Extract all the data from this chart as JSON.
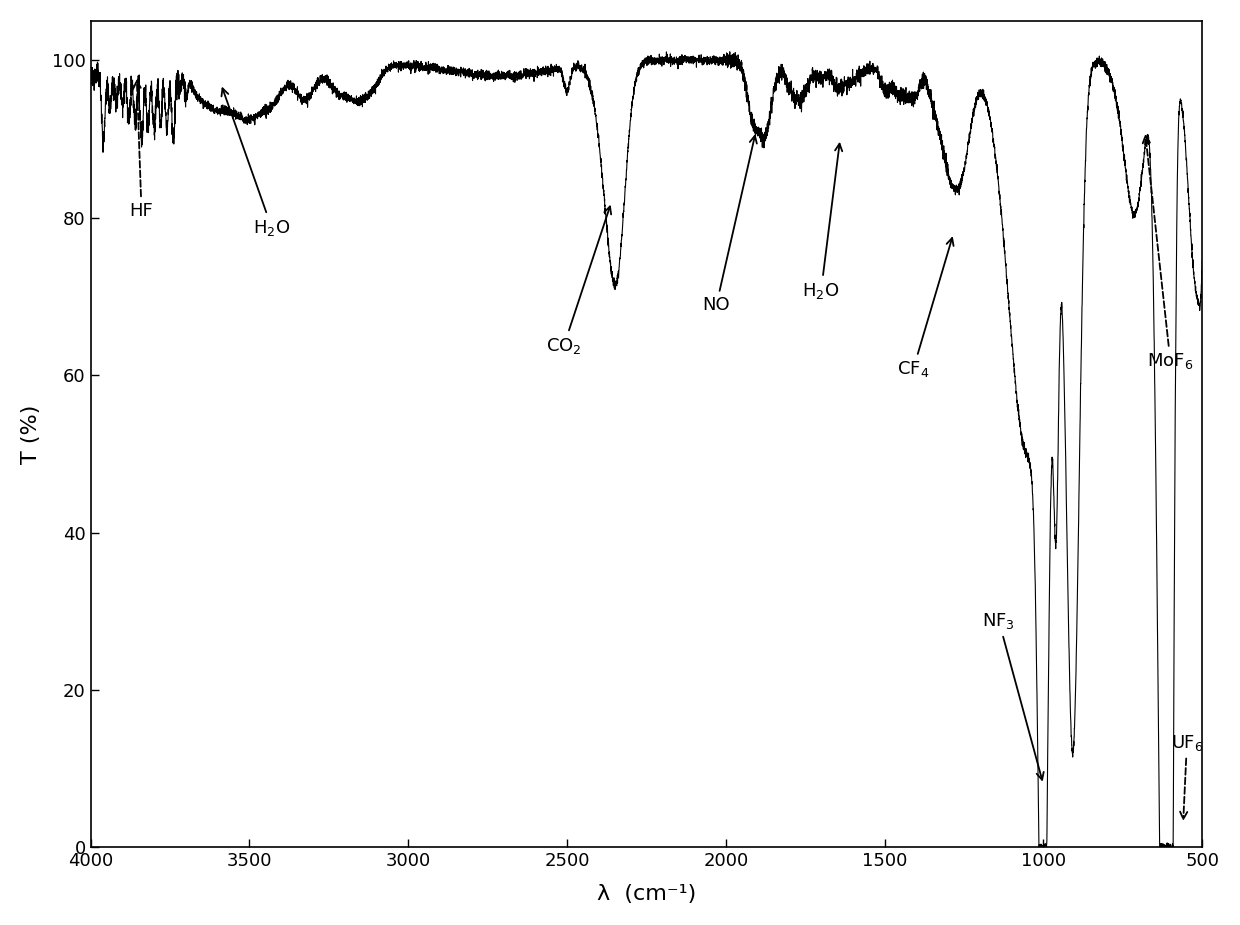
{
  "title": "",
  "xlabel": "λ  (cm⁻¹)",
  "ylabel": "T (%)",
  "xlim": [
    4000,
    500
  ],
  "ylim": [
    0,
    105
  ],
  "yticks": [
    0,
    20,
    40,
    60,
    80,
    100
  ],
  "xticks": [
    4000,
    3500,
    3000,
    2500,
    2000,
    1500,
    1000,
    500
  ],
  "background_color": "#ffffff",
  "line_color": "#000000"
}
